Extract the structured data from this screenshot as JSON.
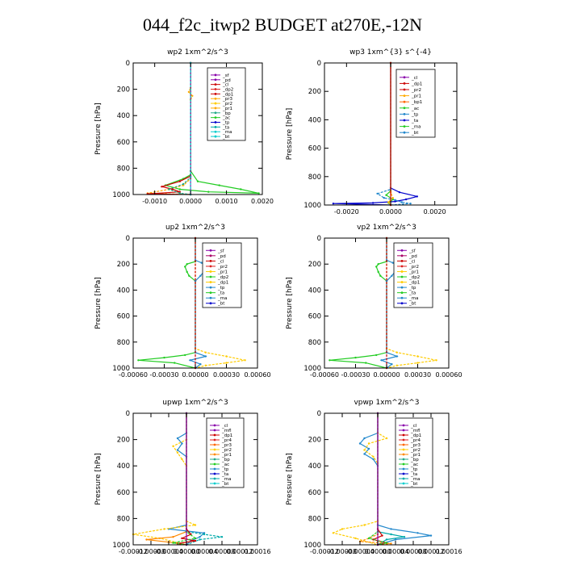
{
  "page": {
    "title": "044_f2c_itwp2  BUDGET at270E,-12N"
  },
  "chart_data": [
    {
      "type": "line",
      "title": "wp2   1xm^2/s^3",
      "ylabel": "Pressure [hPa]",
      "xlim": [
        -0.0016,
        0.002
      ],
      "ylim": [
        1000,
        0
      ],
      "xticks": [
        -0.001,
        0.0,
        0.001,
        0.002
      ],
      "xtick_labels": [
        "-0.0010",
        "0.0000",
        "0.0010",
        "0.0020"
      ],
      "yticks": [
        0,
        200,
        400,
        600,
        800,
        1000
      ],
      "ytick_labels": [
        "0",
        "200",
        "400",
        "600",
        "800",
        "1000"
      ],
      "legend_position": "top-right",
      "legend": [
        "_sf",
        "_pd",
        "_cl",
        "_dp2",
        "_dp1",
        "_pr3",
        "_pr2",
        "_pr1",
        "_bp",
        "_ac",
        "_tp",
        "_ta",
        "_ma",
        "_bt"
      ],
      "series": [
        {
          "name": "_ac",
          "color": "#22cc22",
          "x": [
            0,
            0,
            0.0002,
            0.0008,
            0.0014,
            0.0019,
            0.0005,
            -0.0003,
            -0.0007,
            -0.0002,
            0
          ],
          "y": [
            0,
            820,
            900,
            930,
            960,
            990,
            980,
            960,
            930,
            880,
            850
          ]
        },
        {
          "name": "_pr1",
          "color": "#ffaa00",
          "x": [
            0,
            0,
            -5e-05,
            5e-05,
            0,
            0,
            -0.0002,
            -0.0006,
            -0.0012,
            0
          ],
          "y": [
            0,
            190,
            220,
            250,
            280,
            880,
            930,
            960,
            990,
            1000
          ]
        },
        {
          "name": "_dp1",
          "color": "#cc0000",
          "x": [
            0,
            0,
            -0.0003,
            -0.0008,
            -0.0005,
            -0.0003,
            -0.0012,
            0
          ],
          "y": [
            0,
            860,
            900,
            940,
            960,
            980,
            995,
            1000
          ]
        },
        {
          "name": "_bp",
          "color": "#22aa88",
          "x": [
            0,
            0,
            -0.0002,
            -0.0006,
            -0.0003,
            0
          ],
          "y": [
            0,
            870,
            920,
            960,
            990,
            1000
          ]
        },
        {
          "name": "_pd",
          "color": "#8800aa",
          "x": [
            0,
            0
          ],
          "y": [
            0,
            1000
          ]
        },
        {
          "name": "_bt",
          "color": "#00cccc",
          "x": [
            0,
            0
          ],
          "y": [
            0,
            1000
          ]
        }
      ]
    },
    {
      "type": "line",
      "title": "wp3   1xm^{3} s^{-4}",
      "ylabel": "Pressure [hPa]",
      "xlim": [
        -0.003,
        0.003
      ],
      "ylim": [
        1000,
        0
      ],
      "xticks": [
        -0.002,
        0.0,
        0.002
      ],
      "xtick_labels": [
        "-0.0020",
        "0.0000",
        "0.0020"
      ],
      "yticks": [
        0,
        200,
        400,
        600,
        800,
        1000
      ],
      "ytick_labels": [
        "0",
        "200",
        "400",
        "600",
        "800",
        "1000"
      ],
      "legend_position": "top-right",
      "legend": [
        "_cl",
        "_dp1",
        "_pr2",
        "_pr1",
        "_bp1",
        "_ac",
        "_tp",
        "_ta",
        "_ma",
        "_bt"
      ],
      "series": [
        {
          "name": "_ta",
          "color": "#0000cc",
          "x": [
            0,
            0,
            0.0004,
            0.0012,
            0.0007,
            0.0002,
            -0.0008,
            -0.0026,
            0
          ],
          "y": [
            0,
            880,
            910,
            940,
            960,
            975,
            985,
            990,
            1000
          ]
        },
        {
          "name": "_tp",
          "color": "#2288cc",
          "x": [
            0,
            0,
            -0.0006,
            -0.0003,
            0.0002,
            0.0005,
            0.0009,
            0
          ],
          "y": [
            0,
            890,
            920,
            950,
            965,
            980,
            990,
            1000
          ]
        },
        {
          "name": "_ac",
          "color": "#22cc22",
          "x": [
            0,
            0,
            -0.0002,
            0.0001,
            -0.0001,
            0
          ],
          "y": [
            0,
            900,
            930,
            960,
            985,
            1000
          ]
        },
        {
          "name": "_pr1",
          "color": "#ffaa00",
          "x": [
            0,
            0,
            0.0001,
            -0.0001,
            0
          ],
          "y": [
            0,
            910,
            950,
            980,
            1000
          ]
        },
        {
          "name": "_dp1",
          "color": "#cc0000",
          "x": [
            0,
            0
          ],
          "y": [
            0,
            1000
          ]
        }
      ]
    },
    {
      "type": "line",
      "title": "up2   1xm^2/s^3",
      "ylabel": "Pressure [hPa]",
      "xlim": [
        -0.0006,
        0.0006
      ],
      "ylim": [
        1000,
        0
      ],
      "xticks": [
        -0.0006,
        -0.0003,
        0.0,
        0.0003,
        0.0006
      ],
      "xtick_labels": [
        "-0.00060",
        "-0.00030",
        "0.00000",
        "0.00030",
        "0.00060"
      ],
      "yticks": [
        0,
        200,
        400,
        600,
        800,
        1000
      ],
      "ytick_labels": [
        "0",
        "200",
        "400",
        "600",
        "800",
        "1000"
      ],
      "legend_position": "top-right",
      "legend": [
        "_sf",
        "_pd",
        "_cl",
        "_pr2",
        "_pr1",
        "_dp2",
        "_dp1",
        "_tp",
        "_ta",
        "_ma",
        "_bt"
      ],
      "series": [
        {
          "name": "_dp2",
          "color": "#22cc22",
          "x": [
            0,
            0,
            -8e-05,
            -0.0001,
            -8e-05,
            -6e-05,
            0,
            0,
            -0.0001,
            -0.0003,
            -0.00055,
            -0.0002,
            0
          ],
          "y": [
            0,
            180,
            200,
            220,
            260,
            290,
            330,
            880,
            900,
            920,
            940,
            960,
            1000
          ]
        },
        {
          "name": "_pr1",
          "color": "#ffcc00",
          "x": [
            0,
            0,
            0.0001,
            0.0003,
            0.00048,
            0.0003,
            0.0001,
            0
          ],
          "y": [
            0,
            850,
            880,
            910,
            940,
            960,
            980,
            1000
          ]
        },
        {
          "name": "_tp",
          "color": "#2288cc",
          "x": [
            0,
            0,
            6e-05,
            0.0001,
            0.00012,
            8e-05,
            5e-05,
            0,
            0,
            0.0001,
            -5e-05,
            5e-05,
            0
          ],
          "y": [
            0,
            170,
            190,
            210,
            230,
            260,
            290,
            330,
            880,
            910,
            940,
            970,
            1000
          ]
        },
        {
          "name": "_cl",
          "color": "#cc0000",
          "x": [
            0,
            0
          ],
          "y": [
            0,
            1000
          ]
        }
      ]
    },
    {
      "type": "line",
      "title": "vp2   1xm^2/s^3",
      "ylabel": "Pressure [hPa]",
      "xlim": [
        -0.0006,
        0.0006
      ],
      "ylim": [
        1000,
        0
      ],
      "xticks": [
        -0.0006,
        -0.0003,
        0.0,
        0.0003,
        0.0006
      ],
      "xtick_labels": [
        "-0.00060",
        "-0.00030",
        "0.00000",
        "0.00030",
        "0.00060"
      ],
      "yticks": [
        0,
        200,
        400,
        600,
        800,
        1000
      ],
      "ytick_labels": [
        "0",
        "200",
        "400",
        "600",
        "800",
        "1000"
      ],
      "legend_position": "top-right",
      "legend": [
        "_sf",
        "_pd",
        "_cl",
        "_pr2",
        "_pr1",
        "_dp2",
        "_dp1",
        "_tp",
        "_ta",
        "_ma",
        "_bt"
      ],
      "series": [
        {
          "name": "_dp2",
          "color": "#22cc22",
          "x": [
            0,
            0,
            -8e-05,
            -0.0001,
            -8e-05,
            -6e-05,
            0,
            0,
            -0.0001,
            -0.0003,
            -0.00055,
            -0.0002,
            0
          ],
          "y": [
            0,
            180,
            200,
            220,
            260,
            290,
            330,
            880,
            900,
            920,
            940,
            960,
            1000
          ]
        },
        {
          "name": "_pr1",
          "color": "#ffcc00",
          "x": [
            0,
            0,
            0.0001,
            0.0003,
            0.00048,
            0.0003,
            0.0001,
            0
          ],
          "y": [
            0,
            850,
            880,
            910,
            940,
            960,
            980,
            1000
          ]
        },
        {
          "name": "_tp",
          "color": "#2288cc",
          "x": [
            0,
            0,
            6e-05,
            0.0001,
            0.00012,
            8e-05,
            5e-05,
            0,
            0,
            0.0001,
            -5e-05,
            5e-05,
            0
          ],
          "y": [
            0,
            170,
            190,
            210,
            230,
            260,
            290,
            330,
            880,
            910,
            940,
            970,
            1000
          ]
        },
        {
          "name": "_cl",
          "color": "#cc0000",
          "x": [
            0,
            0
          ],
          "y": [
            0,
            1000
          ]
        }
      ]
    },
    {
      "type": "line",
      "title": "upwp   1xm^2/s^3",
      "ylabel": "Pressure [hPa]",
      "xlim": [
        -0.00012,
        0.00016
      ],
      "ylim": [
        1000,
        0
      ],
      "xticks": [
        -0.00012,
        -8e-05,
        -4e-05,
        0.0,
        4e-05,
        8e-05,
        0.00012,
        0.00016
      ],
      "xtick_labels": [
        "-0.00012",
        "-0.00008",
        "-0.00004",
        "0.00000",
        "0.00004",
        "0.00008",
        "0.00012",
        "0.00016"
      ],
      "yticks": [
        0,
        200,
        400,
        600,
        800,
        1000
      ],
      "ytick_labels": [
        "0",
        "200",
        "400",
        "600",
        "800",
        "1000"
      ],
      "legend_position": "top-right",
      "legend": [
        "_cl",
        "_mfl",
        "_dp1",
        "_pr4",
        "_pr3",
        "_pr2",
        "_pr1",
        "_bp",
        "_ac",
        "_tp",
        "_ta",
        "_ma",
        "_bt"
      ],
      "series": [
        {
          "name": "_tp",
          "color": "#2288cc",
          "x": [
            0,
            0,
            -2e-05,
            -1e-05,
            -2e-05,
            0,
            0,
            -4e-05,
            4e-05,
            3e-05,
            1e-05,
            0
          ],
          "y": [
            0,
            150,
            190,
            230,
            280,
            330,
            850,
            880,
            910,
            940,
            970,
            1000
          ]
        },
        {
          "name": "_pr2",
          "color": "#ffcc00",
          "x": [
            0,
            0,
            -3e-05,
            -2e-05,
            -1e-05,
            0,
            0,
            2e-05,
            -5e-05,
            -0.00012,
            -6e-05,
            0
          ],
          "y": [
            0,
            200,
            250,
            300,
            350,
            400,
            820,
            850,
            880,
            920,
            950,
            1000
          ]
        },
        {
          "name": "_pr1",
          "color": "#ff8800",
          "x": [
            0,
            0,
            -3e-05,
            -9e-05,
            -4e-05,
            0
          ],
          "y": [
            0,
            900,
            940,
            960,
            980,
            1000
          ]
        },
        {
          "name": "_ma",
          "color": "#00aaaa",
          "x": [
            0,
            0,
            4e-05,
            8e-05,
            3e-05,
            0
          ],
          "y": [
            0,
            900,
            920,
            940,
            960,
            1000
          ]
        },
        {
          "name": "_dp1",
          "color": "#cc0000",
          "x": [
            0,
            0,
            1e-05,
            -1e-05,
            2e-05,
            -2e-05,
            0
          ],
          "y": [
            0,
            880,
            920,
            950,
            970,
            990,
            1000
          ]
        },
        {
          "name": "_ac",
          "color": "#22cc22",
          "x": [
            0,
            0,
            2e-05,
            -3e-05,
            0
          ],
          "y": [
            0,
            900,
            950,
            985,
            1000
          ]
        },
        {
          "name": "_mfl",
          "color": "#8800aa",
          "x": [
            0,
            0
          ],
          "y": [
            0,
            1000
          ]
        }
      ]
    },
    {
      "type": "line",
      "title": "vpwp   1xm^2/s^3",
      "ylabel": "Pressure [hPa]",
      "xlim": [
        -0.00012,
        0.00016
      ],
      "ylim": [
        1000,
        0
      ],
      "xticks": [
        -0.00012,
        -8e-05,
        -4e-05,
        0.0,
        4e-05,
        8e-05,
        0.00012,
        0.00016
      ],
      "xtick_labels": [
        "-0.00012",
        "-0.00008",
        "-0.00004",
        "0.00000",
        "0.00004",
        "0.00008",
        "0.00012",
        "0.00016"
      ],
      "yticks": [
        0,
        200,
        400,
        600,
        800,
        1000
      ],
      "ytick_labels": [
        "0",
        "200",
        "400",
        "600",
        "800",
        "1000"
      ],
      "legend_position": "top-right",
      "legend": [
        "_cl",
        "_mfl",
        "_dp1",
        "_pr4",
        "_pr3",
        "_pr2",
        "_pr1",
        "_bp",
        "_ac",
        "_tp",
        "_ta",
        "_ma",
        "_bt"
      ],
      "series": [
        {
          "name": "_tp",
          "color": "#2288cc",
          "x": [
            0,
            0,
            -3e-05,
            -4e-05,
            -2e-05,
            -3e-05,
            -1e-05,
            0,
            0,
            3e-05,
            9e-05,
            0.00012,
            4e-05,
            0
          ],
          "y": [
            0,
            150,
            190,
            230,
            270,
            310,
            350,
            400,
            850,
            880,
            910,
            930,
            960,
            1000
          ]
        },
        {
          "name": "_pr2",
          "color": "#ffcc00",
          "x": [
            0,
            0,
            2e-05,
            -2e-05,
            -3e-05,
            -1e-05,
            0,
            0,
            -3e-05,
            -8e-05,
            -0.0001,
            -5e-05,
            0
          ],
          "y": [
            0,
            150,
            190,
            230,
            280,
            330,
            380,
            820,
            850,
            880,
            910,
            950,
            1000
          ]
        },
        {
          "name": "_ma",
          "color": "#00aaaa",
          "x": [
            0,
            0,
            3e-05,
            6e-05,
            2e-05,
            0
          ],
          "y": [
            0,
            900,
            920,
            940,
            960,
            1000
          ]
        },
        {
          "name": "_pr1",
          "color": "#ff8800",
          "x": [
            0,
            0,
            -2e-05,
            -4e-05,
            3e-05,
            0
          ],
          "y": [
            0,
            920,
            950,
            975,
            990,
            1000
          ]
        },
        {
          "name": "_dp1",
          "color": "#cc0000",
          "x": [
            0,
            0,
            1e-05,
            -1e-05,
            2e-05,
            0
          ],
          "y": [
            0,
            880,
            930,
            960,
            985,
            1000
          ]
        },
        {
          "name": "_ac",
          "color": "#22cc22",
          "x": [
            0,
            0,
            -2e-05,
            2e-05,
            0
          ],
          "y": [
            0,
            900,
            950,
            985,
            1000
          ]
        },
        {
          "name": "_mfl",
          "color": "#8800aa",
          "x": [
            0,
            0
          ],
          "y": [
            0,
            1000
          ]
        }
      ]
    }
  ]
}
